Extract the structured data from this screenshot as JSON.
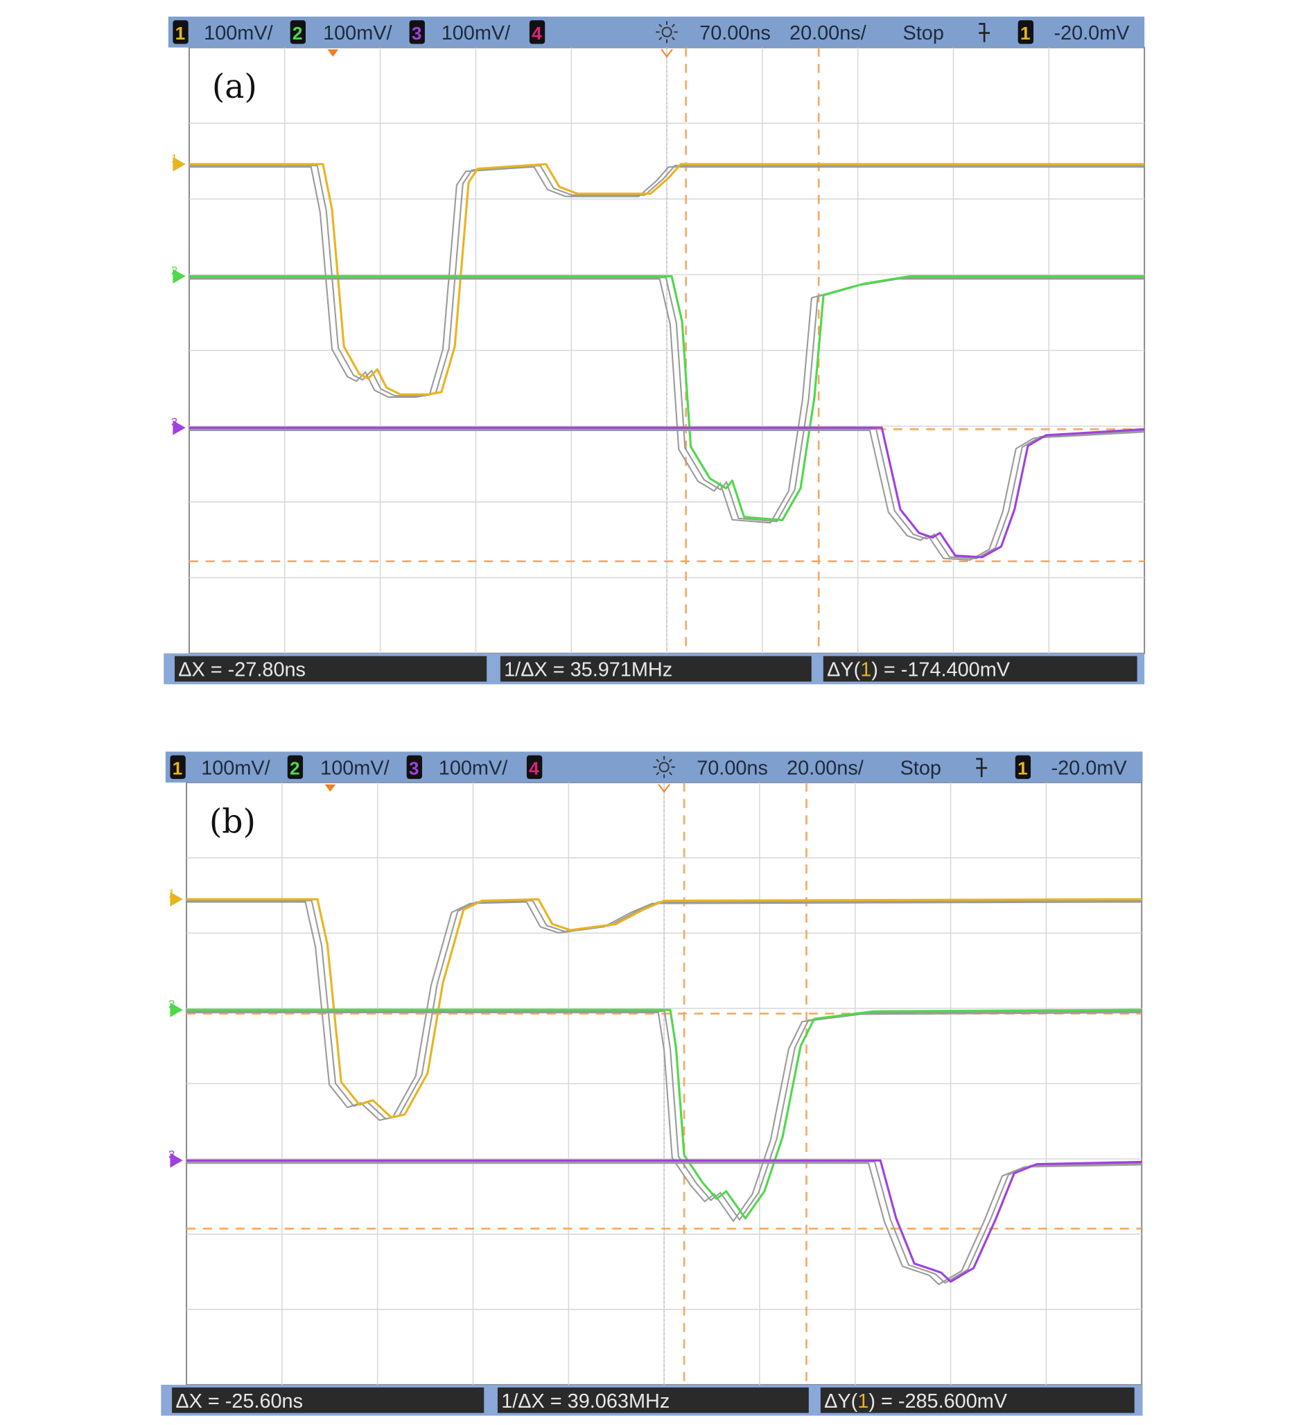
{
  "panels": [
    {
      "label": "(a)",
      "header": {
        "ch1_num": "1",
        "ch1_scale": "100mV/",
        "ch2_num": "2",
        "ch2_scale": "100mV/",
        "ch3_num": "3",
        "ch3_scale": "100mV/",
        "ch4_num": "4",
        "delay": "70.00ns",
        "timebase": "20.00ns/",
        "run_state": "Stop",
        "trig_src": "1",
        "trig_level": "-20.0mV"
      },
      "footer": {
        "dx": "ΔX = -27.80ns",
        "inv_dx": "1/ΔX = 35.971MHz",
        "dy_prefix": "ΔY(",
        "dy_ch": "1",
        "dy_suffix": ") = -174.400mV"
      }
    },
    {
      "label": "(b)",
      "header": {
        "ch1_num": "1",
        "ch1_scale": "100mV/",
        "ch2_num": "2",
        "ch2_scale": "100mV/",
        "ch3_num": "3",
        "ch3_scale": "100mV/",
        "ch4_num": "4",
        "delay": "70.00ns",
        "timebase": "20.00ns/",
        "run_state": "Stop",
        "trig_src": "1",
        "trig_level": "-20.0mV"
      },
      "footer": {
        "dx": "ΔX = -25.60ns",
        "inv_dx": "1/ΔX = 39.063MHz",
        "dy_prefix": "ΔY(",
        "dy_ch": "1",
        "dy_suffix": ") = -285.600mV"
      }
    }
  ],
  "colors": {
    "ch1": "#e8b420",
    "ch2": "#4fd84a",
    "ch3": "#a040e0",
    "ch4": "#e0207a",
    "header_bg": "#7f9fcf",
    "grid": "#d8d8d8",
    "cursor": "#f5a860",
    "persistence": "#9a9a9a"
  },
  "chart_data": [
    {
      "type": "line",
      "x_unit": "ns",
      "y_unit": "mV",
      "xlim": [
        0,
        200
      ],
      "grid": true,
      "series": [
        {
          "name": "1",
          "points": [
            [
              0,
              0
            ],
            [
              28,
              0
            ],
            [
              29.9,
              -60
            ],
            [
              32.4,
              -241
            ],
            [
              35.6,
              -277
            ],
            [
              37.5,
              -283
            ],
            [
              39.4,
              -271
            ],
            [
              41.3,
              -295
            ],
            [
              44.2,
              -304
            ],
            [
              49.9,
              -304
            ],
            [
              52.8,
              -301
            ],
            [
              55.6,
              -241
            ],
            [
              58.5,
              -24
            ],
            [
              60.4,
              -6
            ],
            [
              74.7,
              0
            ],
            [
              77.5,
              -30
            ],
            [
              81.3,
              -39
            ],
            [
              96.6,
              -39
            ],
            [
              100.4,
              -18
            ],
            [
              102.9,
              0
            ],
            [
              200,
              0
            ]
          ]
        },
        {
          "name": "2",
          "points": [
            [
              0,
              0
            ],
            [
              101,
              0
            ],
            [
              103.2,
              -60
            ],
            [
              105,
              -225
            ],
            [
              109,
              -267
            ],
            [
              112.4,
              -280
            ],
            [
              113.7,
              -270
            ],
            [
              116.2,
              -318
            ],
            [
              124.2,
              -322
            ],
            [
              128,
              -280
            ],
            [
              130.9,
              -160
            ],
            [
              132.8,
              -25
            ],
            [
              141.3,
              -10
            ],
            [
              150.9,
              0
            ],
            [
              200,
              0
            ]
          ]
        },
        {
          "name": "3",
          "points": [
            [
              0,
              0
            ],
            [
              145,
              0
            ],
            [
              148.9,
              -108
            ],
            [
              152.8,
              -139
            ],
            [
              155.6,
              -145
            ],
            [
              157.2,
              -139
            ],
            [
              160.4,
              -169
            ],
            [
              166,
              -171
            ],
            [
              170,
              -157
            ],
            [
              172.8,
              -108
            ],
            [
              175.6,
              -24
            ],
            [
              179.4,
              -10
            ],
            [
              200,
              -2
            ]
          ]
        }
      ],
      "x_cursors_ns": [
        104,
        131.8
      ],
      "y_cursors_mV": [
        -350,
        -524.4
      ]
    },
    {
      "type": "line",
      "x_unit": "ns",
      "y_unit": "mV",
      "xlim": [
        0,
        200
      ],
      "grid": true,
      "series": [
        {
          "name": "1",
          "points": [
            [
              0,
              0
            ],
            [
              27.4,
              0
            ],
            [
              29.5,
              -60
            ],
            [
              32.4,
              -243
            ],
            [
              36.2,
              -273
            ],
            [
              39,
              -267
            ],
            [
              42.9,
              -290
            ],
            [
              45.7,
              -286
            ],
            [
              50.5,
              -231
            ],
            [
              53.7,
              -111
            ],
            [
              58,
              -14
            ],
            [
              61.9,
              -2
            ],
            [
              73.7,
              0
            ],
            [
              76.6,
              -33
            ],
            [
              80.4,
              -41
            ],
            [
              89.9,
              -33
            ],
            [
              95.6,
              -14
            ],
            [
              100,
              -2
            ],
            [
              200,
              0
            ]
          ]
        },
        {
          "name": "2",
          "points": [
            [
              0,
              0
            ],
            [
              101.3,
              0
            ],
            [
              102.5,
              -50
            ],
            [
              104.2,
              -193
            ],
            [
              108,
              -229
            ],
            [
              111,
              -251
            ],
            [
              113,
              -241
            ],
            [
              117,
              -277
            ],
            [
              121,
              -241
            ],
            [
              124.8,
              -169
            ],
            [
              128.6,
              -48
            ],
            [
              131.4,
              -12
            ],
            [
              143.8,
              -2
            ],
            [
              200,
              0
            ]
          ]
        },
        {
          "name": "3",
          "points": [
            [
              0,
              0
            ],
            [
              145.3,
              0
            ],
            [
              148.6,
              -77
            ],
            [
              152.4,
              -137
            ],
            [
              155.2,
              -143
            ],
            [
              158,
              -149
            ],
            [
              160,
              -161
            ],
            [
              164.8,
              -143
            ],
            [
              169.5,
              -77
            ],
            [
              173.3,
              -17
            ],
            [
              178,
              -5
            ],
            [
              200,
              -2
            ]
          ]
        }
      ],
      "x_cursors_ns": [
        104.2,
        129.8
      ],
      "y_cursors_mV": [
        -152,
        -437.6
      ]
    }
  ]
}
